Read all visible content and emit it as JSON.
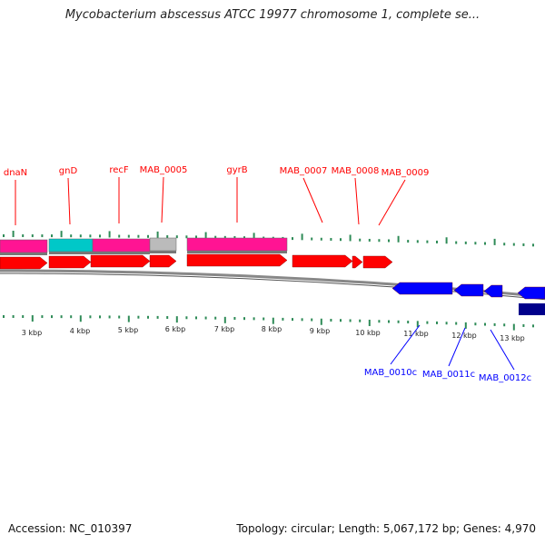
{
  "title": "Mycobacterium abscessus ATCC 19977 chromosome 1, complete se...",
  "footer": {
    "accession": "Accession: NC_010397",
    "summary": "Topology: circular; Length: 5,067,172 bp; Genes: 4,970"
  },
  "colors": {
    "forward_gene": "#ff0000",
    "reverse_gene": "#0000ff",
    "reverse_dark": "#00008b",
    "pink": "#ff1493",
    "cyan": "#00c8c8",
    "grey": "#bbbbbb",
    "ticks": "#2e8b57",
    "backbone": "#888888"
  },
  "kbp_labels": [
    "3 kbp",
    "4 kbp",
    "5 kbp",
    "6 kbp",
    "7 kbp",
    "8 kbp",
    "9 kbp",
    "10 kbp",
    "11 kbp",
    "12 kbp",
    "13 kbp"
  ],
  "forward_genes": [
    "dnaN",
    "gnD",
    "recF",
    "MAB_0005",
    "gyrB",
    "MAB_0007",
    "MAB_0008",
    "MAB_0009"
  ],
  "reverse_genes": [
    "MAB_0010c",
    "MAB_0011c",
    "MAB_0012c"
  ]
}
